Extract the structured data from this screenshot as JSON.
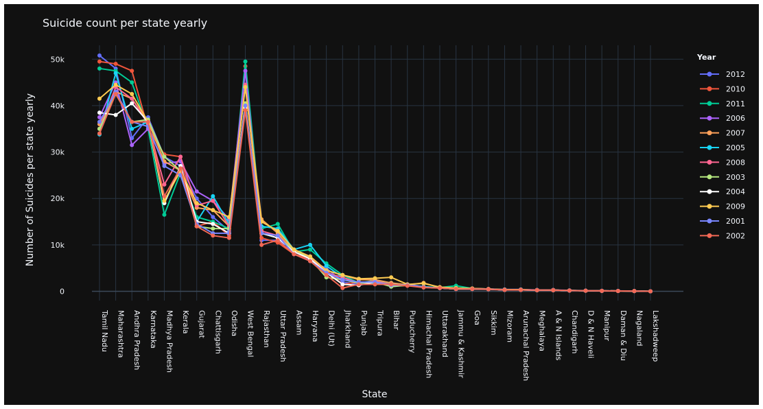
{
  "chart_data": {
    "type": "line",
    "title": "Suicide count per state yearly",
    "xlabel": "State",
    "ylabel": "Number of Suicides per state yearly",
    "ylim": [
      -2000,
      53000
    ],
    "y_ticks": [
      0,
      10000,
      20000,
      30000,
      40000,
      50000
    ],
    "y_tick_labels": [
      "0",
      "10k",
      "20k",
      "30k",
      "40k",
      "50k"
    ],
    "grid": true,
    "legend_title": "Year",
    "legend_position": "right",
    "categories": [
      "Tamil Nadu",
      "Maharashtra",
      "Andhra Pradesh",
      "Karnataka",
      "Madhya Pradesh",
      "Kerala",
      "Gujarat",
      "Chattisgarh",
      "Odisha",
      "West Bengal",
      "Rajasthan",
      "Uttar Pradesh",
      "Assam",
      "Haryana",
      "Delhi (Ut)",
      "Jharkhand",
      "Punjab",
      "Tripura",
      "Bihar",
      "Puducherry",
      "Himachal Pradesh",
      "Uttarakhand",
      "Jammu & Kashmir",
      "Goa",
      "Sikkim",
      "Mizoram",
      "Arunachal Pradesh",
      "Meghalaya",
      "A & N Islands",
      "Chandigarh",
      "D & N Haveli",
      "Manipur",
      "Daman & Diu",
      "Nagaland",
      "Lakshadweep"
    ],
    "series": [
      {
        "name": "2012",
        "color": "#636efa",
        "values": [
          50800,
          48000,
          33000,
          37500,
          29000,
          27000,
          20000,
          16000,
          13000,
          40500,
          11000,
          11000,
          9000,
          6500,
          5000,
          2000,
          1500,
          2500,
          1500,
          1500,
          1000,
          800,
          500,
          600,
          500,
          400,
          400,
          300,
          300,
          200,
          150,
          100,
          80,
          50,
          0
        ]
      },
      {
        "name": "2010",
        "color": "#ef553b",
        "values": [
          49500,
          49000,
          47500,
          35000,
          29500,
          29000,
          14000,
          15000,
          12000,
          48500,
          11500,
          10500,
          8000,
          7000,
          4500,
          1500,
          2000,
          2000,
          1200,
          1200,
          900,
          700,
          500,
          500,
          400,
          300,
          300,
          200,
          200,
          150,
          120,
          80,
          60,
          40,
          0
        ]
      },
      {
        "name": "2011",
        "color": "#00cc96",
        "values": [
          48000,
          47500,
          45000,
          35000,
          16500,
          25500,
          16000,
          15000,
          13500,
          49500,
          13500,
          14500,
          8500,
          9000,
          6000,
          3500,
          1800,
          2300,
          1800,
          1300,
          1000,
          800,
          1200,
          600,
          500,
          350,
          350,
          250,
          250,
          180,
          140,
          90,
          70,
          50,
          0
        ]
      },
      {
        "name": "2006",
        "color": "#ab63fa",
        "values": [
          37500,
          45000,
          31500,
          35000,
          27500,
          28000,
          21500,
          19500,
          15500,
          47500,
          12500,
          12000,
          9000,
          7500,
          4000,
          2500,
          1800,
          2000,
          1300,
          1400,
          900,
          700,
          500,
          500,
          450,
          300,
          300,
          250,
          250,
          160,
          130,
          90,
          70,
          50,
          0
        ]
      },
      {
        "name": "2007",
        "color": "#ffa15a",
        "values": [
          36000,
          43000,
          41500,
          36500,
          28000,
          26000,
          18000,
          17500,
          14000,
          44500,
          15500,
          12500,
          8500,
          7500,
          4500,
          3500,
          2500,
          2500,
          1800,
          1400,
          1800,
          800,
          600,
          600,
          500,
          350,
          350,
          260,
          260,
          170,
          130,
          90,
          70,
          50,
          0
        ]
      },
      {
        "name": "2005",
        "color": "#19d3f3",
        "values": [
          33800,
          47000,
          35000,
          36500,
          19000,
          26500,
          15000,
          20500,
          14500,
          44500,
          14000,
          13500,
          9000,
          10000,
          5500,
          3000,
          1800,
          1800,
          1500,
          1300,
          900,
          700,
          500,
          500,
          450,
          300,
          300,
          250,
          250,
          160,
          130,
          90,
          70,
          50,
          0
        ]
      },
      {
        "name": "2008",
        "color": "#ff6692",
        "values": [
          35000,
          44000,
          41500,
          36000,
          23000,
          29000,
          18500,
          19500,
          14000,
          44500,
          13000,
          12000,
          8500,
          7500,
          4000,
          3000,
          1800,
          2200,
          1400,
          1300,
          900,
          700,
          500,
          500,
          450,
          300,
          300,
          250,
          250,
          160,
          130,
          90,
          70,
          50,
          0
        ]
      },
      {
        "name": "2003",
        "color": "#b6e880",
        "values": [
          35000,
          42500,
          36500,
          37000,
          29000,
          26000,
          14000,
          13500,
          13500,
          40500,
          12500,
          11500,
          9000,
          7000,
          3000,
          2500,
          1800,
          2000,
          1000,
          1300,
          900,
          700,
          500,
          500,
          450,
          300,
          300,
          250,
          250,
          160,
          130,
          90,
          70,
          50,
          0
        ]
      },
      {
        "name": "2004",
        "color": "#ffffff",
        "values": [
          38500,
          38000,
          40500,
          36500,
          19000,
          27000,
          15000,
          14500,
          12500,
          39500,
          12500,
          11500,
          8500,
          7000,
          4000,
          1500,
          1300,
          2000,
          1300,
          1300,
          900,
          700,
          500,
          500,
          450,
          300,
          300,
          250,
          250,
          160,
          130,
          90,
          70,
          50,
          0
        ]
      },
      {
        "name": "2009",
        "color": "#fecb52",
        "values": [
          41500,
          44500,
          42500,
          36500,
          19500,
          26000,
          19000,
          17500,
          16000,
          44000,
          15000,
          13000,
          9000,
          7500,
          4500,
          3500,
          2700,
          2800,
          3000,
          1500,
          1700,
          900,
          700,
          600,
          500,
          350,
          350,
          260,
          260,
          170,
          130,
          90,
          70,
          50,
          0
        ]
      },
      {
        "name": "2001",
        "color": "#7986ff",
        "values": [
          36500,
          43000,
          36500,
          35500,
          27000,
          25000,
          14500,
          12500,
          12500,
          40000,
          12500,
          12000,
          8000,
          6500,
          4000,
          2500,
          2000,
          2000,
          1300,
          1300,
          900,
          700,
          500,
          500,
          450,
          300,
          300,
          250,
          250,
          160,
          130,
          90,
          70,
          50,
          0
        ]
      },
      {
        "name": "2002",
        "color": "#f26855",
        "values": [
          34000,
          42500,
          36500,
          36500,
          20500,
          26500,
          14000,
          12000,
          11500,
          39000,
          10000,
          11000,
          8000,
          6500,
          3500,
          700,
          1500,
          1500,
          1500,
          1200,
          800,
          700,
          500,
          500,
          450,
          300,
          300,
          250,
          250,
          160,
          130,
          90,
          70,
          50,
          0
        ]
      }
    ]
  }
}
